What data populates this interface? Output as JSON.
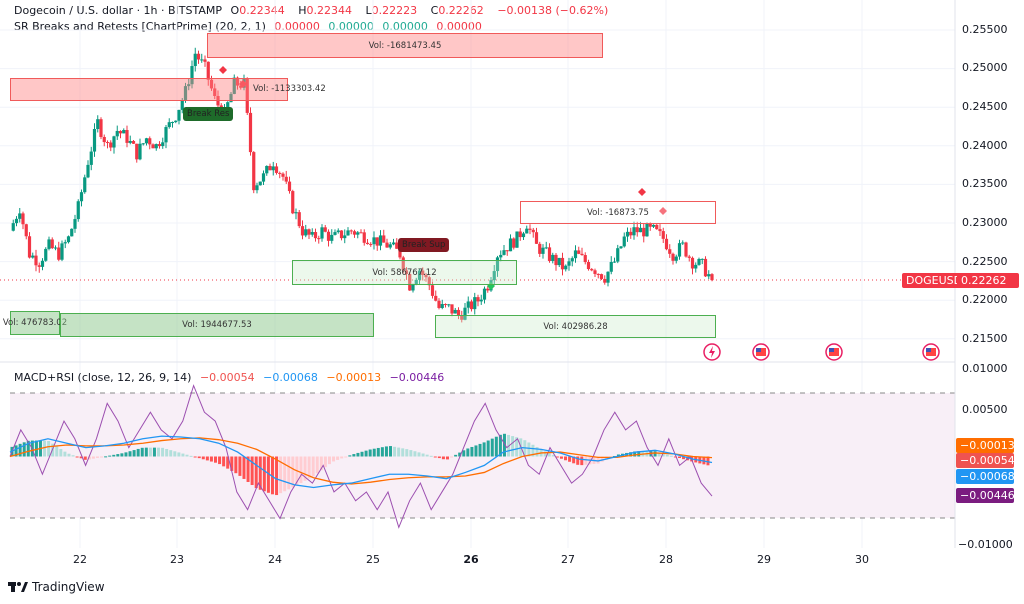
{
  "header": {
    "symbol": "Dogecoin / U.S. dollar · 1h · BITSTAMP",
    "o_label": "O",
    "o": "0.22344",
    "h_label": "H",
    "h": "0.22344",
    "l_label": "L",
    "l": "0.22223",
    "c_label": "C",
    "c": "0.22262",
    "change": "−0.00138 (−0.62%)"
  },
  "indicator1": {
    "name": "SR Breaks and Retests [ChartPrime] (20, 2, 1)",
    "values": [
      "0.00000",
      "0.00000",
      "0.00000",
      "0.00000"
    ]
  },
  "indicator2": {
    "name": "MACD+RSI (close, 12, 26, 9, 14)",
    "values": [
      "−0.00054",
      "−0.00068",
      "−0.00013",
      "−0.00446"
    ]
  },
  "boxes": {
    "res1": "Vol: -1681473.45",
    "res2": "Vol: -1133303.42",
    "res3": "Vol: -16873.75",
    "sup1": "Vol: 586767.12",
    "sup2": "Vol: 476783.02",
    "sup3": "Vol: 1944677.53",
    "sup4": "Vol: 402986.28"
  },
  "labels": {
    "break_res": "Break Res",
    "break_sup": "Break Sup"
  },
  "price_axis": [
    "0.25500",
    "0.25000",
    "0.24500",
    "0.24000",
    "0.23500",
    "0.23000",
    "0.22500",
    "0.22000",
    "0.21500"
  ],
  "macd_axis": [
    "0.01000",
    "0.00500",
    "−0.01000"
  ],
  "price_tag": {
    "symbol": "DOGEUSD",
    "value": "0.22262"
  },
  "macd_tags": [
    "−0.00013",
    "−0.00054",
    "−0.00068",
    "−0.00446"
  ],
  "dates": [
    "22",
    "23",
    "24",
    "25",
    "26",
    "27",
    "28",
    "29",
    "30"
  ],
  "footer": {
    "brand": "TradingView"
  },
  "colors": {
    "up": "#089981",
    "down": "#f23645",
    "macd": "#2196f3",
    "signal": "#ff6d00",
    "rsi": "#7b1fa2",
    "resistance": "#f05a5a",
    "support": "#4caf50"
  },
  "chart_data": [
    {
      "type": "candlestick",
      "symbol": "DOGEUSD",
      "x_ticks": [
        "22",
        "23",
        "24",
        "25",
        "26",
        "27",
        "28",
        "29",
        "30"
      ],
      "ylim": [
        0.2125,
        0.2575
      ],
      "close": [
        0.229,
        0.232,
        0.226,
        0.225,
        0.227,
        0.226,
        0.228,
        0.232,
        0.238,
        0.243,
        0.24,
        0.242,
        0.241,
        0.239,
        0.241,
        0.24,
        0.242,
        0.244,
        0.247,
        0.252,
        0.25,
        0.246,
        0.244,
        0.248,
        0.248,
        0.235,
        0.236,
        0.238,
        0.236,
        0.232,
        0.229,
        0.228,
        0.229,
        0.228,
        0.2285,
        0.229,
        0.2285,
        0.228,
        0.2275,
        0.227,
        0.226,
        0.222,
        0.224,
        0.222,
        0.219,
        0.219,
        0.218,
        0.219,
        0.22,
        0.222,
        0.226,
        0.227,
        0.228,
        0.23,
        0.227,
        0.226,
        0.225,
        0.224,
        0.226,
        0.225,
        0.224,
        0.223,
        0.225,
        0.228,
        0.229,
        0.229,
        0.229,
        0.228,
        0.226,
        0.227,
        0.225,
        0.2245,
        0.2226
      ]
    },
    {
      "type": "line",
      "name": "MACD+RSI",
      "ylim": [
        -0.0105,
        0.0105
      ],
      "macd": [
        0.0005,
        0.0015,
        0.002,
        0.0015,
        0.001,
        0.0012,
        0.0015,
        0.002,
        0.0023,
        0.0022,
        0.002,
        0.0015,
        0.0005,
        -0.001,
        -0.0025,
        -0.0032,
        -0.0035,
        -0.0032,
        -0.003,
        -0.0025,
        -0.002,
        -0.002,
        -0.0022,
        -0.0025,
        -0.0018,
        -0.001,
        0.0005,
        0.001,
        0.0008,
        0.0004,
        -0.0003,
        -0.0005,
        0.0,
        0.0005,
        0.0007,
        0.0003,
        -0.0003,
        -0.00068
      ],
      "signal": [
        0.0,
        0.0006,
        0.0011,
        0.0013,
        0.0012,
        0.0012,
        0.0013,
        0.0015,
        0.0018,
        0.002,
        0.0021,
        0.0019,
        0.0015,
        0.0008,
        -0.0003,
        -0.0015,
        -0.0024,
        -0.0029,
        -0.0031,
        -0.0029,
        -0.0026,
        -0.0024,
        -0.0023,
        -0.0023,
        -0.0022,
        -0.0018,
        -0.0008,
        0.0,
        0.0004,
        0.0005,
        0.0002,
        -0.0001,
        -0.0001,
        0.0002,
        0.0004,
        0.0003,
        0.0,
        -0.00013
      ],
      "rsi": [
        0.0,
        0.003,
        0.001,
        -0.002,
        0.001,
        0.004,
        0.002,
        -0.001,
        0.002,
        0.006,
        0.004,
        0.001,
        0.003,
        0.005,
        0.003,
        0.002,
        0.004,
        0.008,
        0.005,
        0.004,
        0.001,
        -0.004,
        -0.006,
        -0.003,
        -0.005,
        -0.007,
        -0.004,
        -0.002,
        -0.003,
        -0.001,
        -0.004,
        -0.003,
        -0.005,
        -0.004,
        -0.006,
        -0.004,
        -0.008,
        -0.005,
        -0.003,
        -0.006,
        -0.004,
        -0.002,
        0.001,
        0.004,
        0.006,
        0.003,
        0.001,
        0.002,
        -0.001,
        -0.002,
        0.001,
        -0.001,
        -0.003,
        -0.002,
        0.0,
        0.003,
        0.005,
        0.003,
        0.004,
        0.001,
        -0.001,
        0.002,
        -0.001,
        0.0,
        -0.003,
        -0.00446
      ]
    }
  ]
}
